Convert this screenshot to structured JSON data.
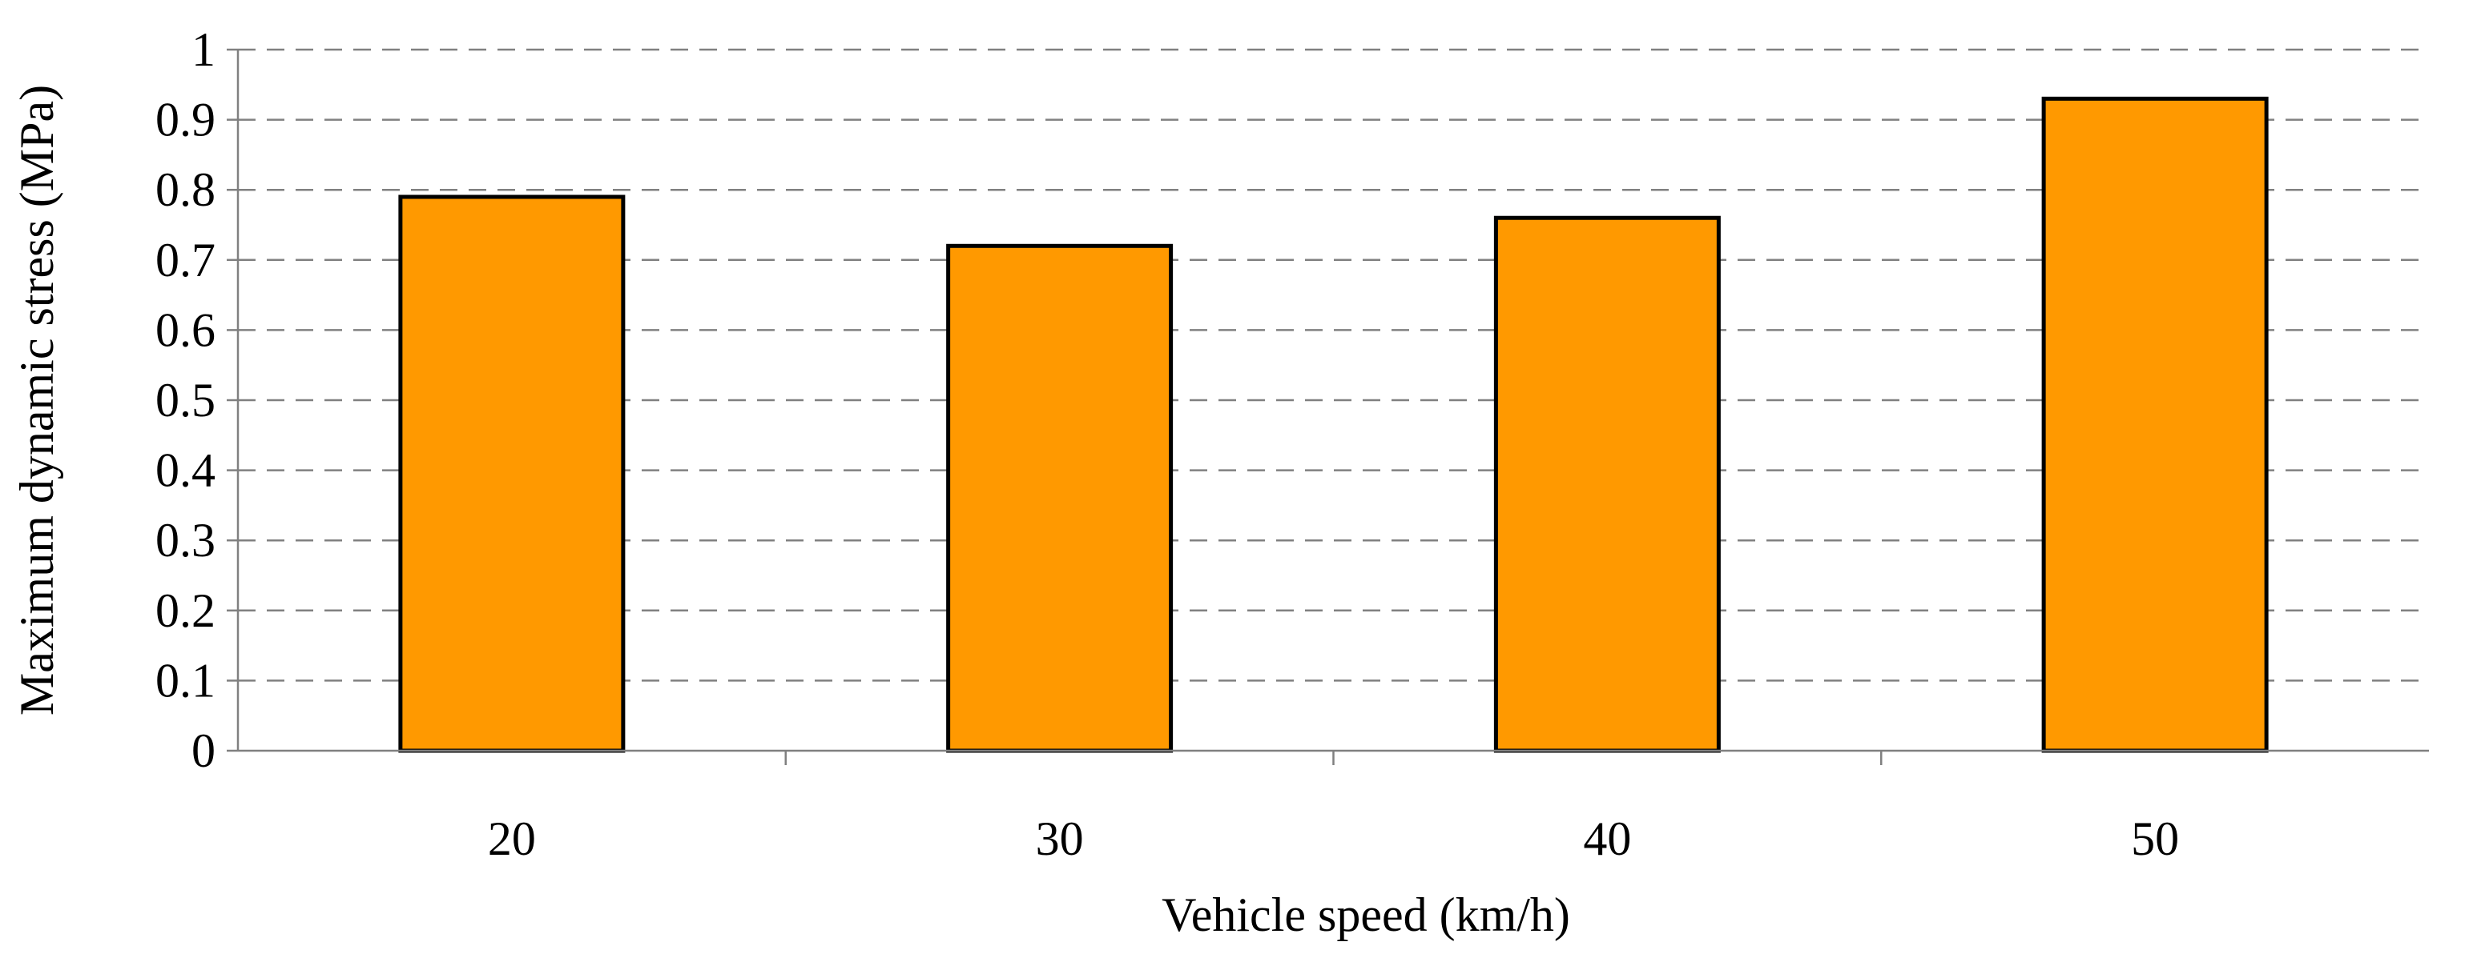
{
  "chart_data": {
    "type": "bar",
    "title": "",
    "xlabel": "Vehicle speed (km/h)",
    "ylabel": "Maximum dynamic stress (MPa)",
    "categories": [
      "20",
      "30",
      "40",
      "50"
    ],
    "values": [
      0.79,
      0.72,
      0.76,
      0.93
    ],
    "ylim": [
      0,
      1
    ],
    "yticks": [
      "0",
      "0.1",
      "0.2",
      "0.3",
      "0.4",
      "0.5",
      "0.6",
      "0.7",
      "0.8",
      "0.9",
      "1"
    ],
    "grid": "horizontal dashed",
    "legend": "none",
    "colors": {
      "bar_fill": "#FF9900",
      "bar_stroke": "#000000",
      "grid": "#808080",
      "axis": "#808080"
    }
  }
}
